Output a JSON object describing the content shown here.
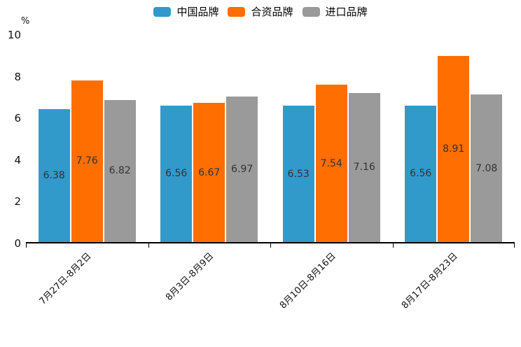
{
  "chart_data": {
    "type": "bar",
    "title": "",
    "unit_label": "%",
    "categories": [
      "7月27日-8月2日",
      "8月3日-8月9日",
      "8月10日-8月16日",
      "8月17日-8月23日"
    ],
    "series": [
      {
        "name": "中国品牌",
        "color": "#3299CB",
        "values": [
          6.38,
          6.56,
          6.53,
          6.56
        ]
      },
      {
        "name": "合资品牌",
        "color": "#FF6E00",
        "values": [
          7.76,
          6.67,
          7.54,
          8.91
        ]
      },
      {
        "name": "进口品牌",
        "color": "#9A9A9A",
        "values": [
          6.82,
          6.97,
          7.16,
          7.08
        ]
      }
    ],
    "ylim": [
      0,
      10
    ],
    "yticks": [
      0,
      2,
      4,
      6,
      8,
      10
    ],
    "grid": false,
    "legend_position": "top-center",
    "value_labels": "inside-center",
    "value_label_format": "0.00",
    "xlabel": "",
    "ylabel": "%"
  },
  "colors": {
    "axis": "#000000",
    "tick_label": "#111111",
    "bar_value_label": "#333333",
    "background": "#ffffff"
  }
}
